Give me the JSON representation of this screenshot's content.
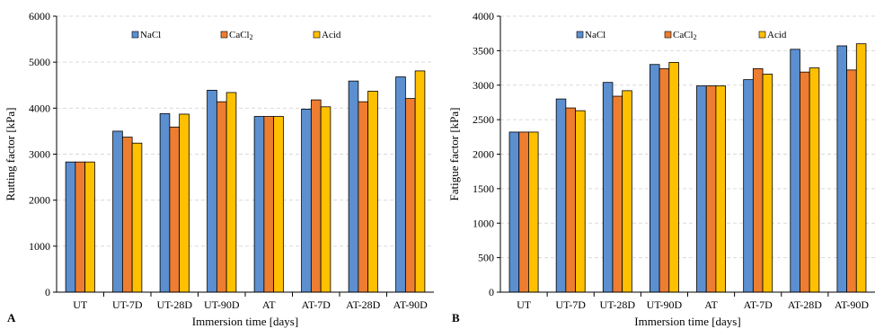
{
  "colors": {
    "NaCl": "#5B8FD0",
    "CaCl2": "#ED7D31",
    "Acid": "#FFC000"
  },
  "chart_data": [
    {
      "type": "bar",
      "panel": "A",
      "categories": [
        "UT",
        "UT-7D",
        "UT-28D",
        "UT-90D",
        "AT",
        "AT-7D",
        "AT-28D",
        "AT-90D"
      ],
      "series": [
        {
          "name": "NaCl",
          "display": [
            "NaCl",
            ""
          ],
          "values": [
            2830,
            3500,
            3880,
            4390,
            3820,
            3980,
            4590,
            4680
          ]
        },
        {
          "name": "CaCl2",
          "display": [
            "CaCl",
            "2"
          ],
          "values": [
            2830,
            3370,
            3590,
            4140,
            3820,
            4180,
            4140,
            4210
          ]
        },
        {
          "name": "Acid",
          "display": [
            "Acid",
            ""
          ],
          "values": [
            2830,
            3240,
            3870,
            4340,
            3820,
            4030,
            4370,
            4810
          ]
        }
      ],
      "xlabel": "Immersion time [days]",
      "ylabel": "Rutting factor [kPa]",
      "ylim": [
        0,
        6000
      ],
      "yticks": [
        0,
        1000,
        2000,
        3000,
        4000,
        5000,
        6000
      ],
      "grid": true,
      "legend": "top"
    },
    {
      "type": "bar",
      "panel": "B",
      "categories": [
        "UT",
        "UT-7D",
        "UT-28D",
        "UT-90D",
        "AT",
        "AT-7D",
        "AT-28D",
        "AT-90D"
      ],
      "series": [
        {
          "name": "NaCl",
          "display": [
            "NaCl",
            ""
          ],
          "values": [
            2320,
            2800,
            3040,
            3300,
            2990,
            3080,
            3520,
            3570
          ]
        },
        {
          "name": "CaCl2",
          "display": [
            "CaCl",
            "2"
          ],
          "values": [
            2320,
            2670,
            2840,
            3240,
            2990,
            3240,
            3190,
            3220
          ]
        },
        {
          "name": "Acid",
          "display": [
            "Acid",
            ""
          ],
          "values": [
            2320,
            2630,
            2920,
            3330,
            2990,
            3160,
            3250,
            3600
          ]
        }
      ],
      "xlabel": "Immersion time [days]",
      "ylabel": "Fatigue factor [kPa]",
      "ylim": [
        0,
        4000
      ],
      "yticks": [
        0,
        500,
        1000,
        1500,
        2000,
        2500,
        3000,
        3500,
        4000
      ],
      "grid": true,
      "legend": "top"
    }
  ]
}
